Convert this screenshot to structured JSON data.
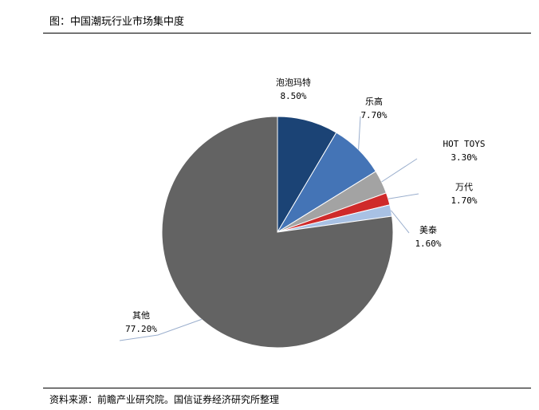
{
  "title": "图：中国潮玩行业市场集中度",
  "source": "资料来源：前瞻产业研究院。国信证券经济研究所整理",
  "chart_data": {
    "type": "pie",
    "title": "",
    "start_angle_deg": 0,
    "direction": "clockwise",
    "slices": [
      {
        "label": "泡泡玛特",
        "value": 8.5,
        "value_label": "8.50%",
        "color": "#1b4375"
      },
      {
        "label": "乐高",
        "value": 7.7,
        "value_label": "7.70%",
        "color": "#4474b6"
      },
      {
        "label": "HOT TOYS",
        "value": 3.3,
        "value_label": "3.30%",
        "color": "#a3a3a3"
      },
      {
        "label": "万代",
        "value": 1.7,
        "value_label": "1.70%",
        "color": "#cf2a2a"
      },
      {
        "label": "美泰",
        "value": 1.6,
        "value_label": "1.60%",
        "color": "#a8c1e4"
      },
      {
        "label": "其他",
        "value": 77.2,
        "value_label": "77.20%",
        "color": "#636363"
      }
    ],
    "legend": "none",
    "data_labels": "outside-with-leader-lines"
  }
}
